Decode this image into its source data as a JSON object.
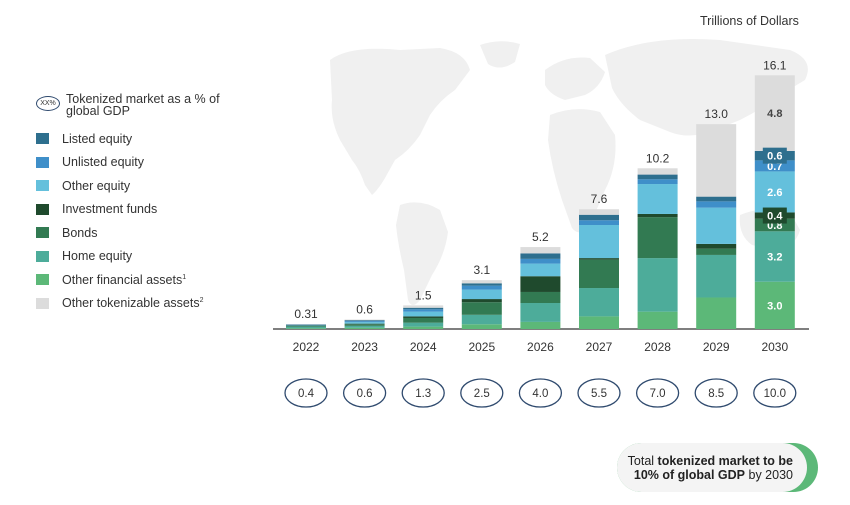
{
  "unit_label": "Trillions of Dollars",
  "legend": {
    "gdp_badge": "XX%",
    "gdp_label": "Tokenized market as a % of global GDP",
    "items": [
      {
        "label": "Listed equity",
        "sup": "",
        "color": "#2e6f8e"
      },
      {
        "label": "Unlisted equity",
        "sup": "",
        "color": "#3f8fc9"
      },
      {
        "label": "Other equity",
        "sup": "",
        "color": "#64c0dc"
      },
      {
        "label": "Investment funds",
        "sup": "",
        "color": "#1f4a2d"
      },
      {
        "label": "Bonds",
        "sup": "",
        "color": "#327a52"
      },
      {
        "label": "Home equity",
        "sup": "",
        "color": "#4dac9a"
      },
      {
        "label": "Other financial assets",
        "sup": "1",
        "color": "#5cb878"
      },
      {
        "label": "Other tokenizable assets",
        "sup": "2",
        "color": "#dcdcdc"
      }
    ]
  },
  "callout": {
    "line1_prefix": "Total ",
    "line1_bold": "tokenized market to be",
    "line2_bold": "10% of global GDP",
    "line2_suffix": " by 2030"
  },
  "chart_data": {
    "type": "bar",
    "stacked": true,
    "categories": [
      "2022",
      "2023",
      "2024",
      "2025",
      "2026",
      "2027",
      "2028",
      "2029",
      "2030"
    ],
    "totals": [
      0.31,
      0.6,
      1.5,
      3.1,
      5.2,
      7.6,
      10.2,
      13.0,
      16.1
    ],
    "total_labels": [
      "0.31",
      "0.6",
      "1.5",
      "3.1",
      "5.2",
      "7.6",
      "10.2",
      "13.0",
      "16.1"
    ],
    "gdp_percent": [
      "0.4",
      "0.6",
      "1.3",
      "2.5",
      "4.0",
      "5.5",
      "7.0",
      "8.5",
      "10.0"
    ],
    "series": [
      {
        "name": "Other financial assets",
        "color": "#5cb878",
        "values": [
          0.05,
          0.08,
          0.15,
          0.3,
          0.45,
          0.8,
          1.1,
          2.0,
          3.0
        ],
        "labels": [
          "",
          "",
          "",
          "",
          "",
          "",
          "",
          "",
          "3.0"
        ]
      },
      {
        "name": "Home equity",
        "color": "#4dac9a",
        "values": [
          0.1,
          0.12,
          0.25,
          0.6,
          1.2,
          1.8,
          3.4,
          2.7,
          3.2
        ],
        "labels": [
          "",
          "",
          "",
          "",
          "",
          "",
          "",
          "",
          "3.2"
        ]
      },
      {
        "name": "Bonds",
        "color": "#327a52",
        "values": [
          0.05,
          0.1,
          0.3,
          0.8,
          0.7,
          1.8,
          2.6,
          0.4,
          0.8
        ],
        "labels": [
          "",
          "",
          "",
          "",
          "",
          "",
          "",
          "",
          "0.8"
        ]
      },
      {
        "name": "Investment funds",
        "color": "#1f4a2d",
        "values": [
          0.02,
          0.04,
          0.1,
          0.2,
          1.0,
          0.1,
          0.2,
          0.3,
          0.4
        ],
        "labels": [
          "",
          "",
          "",
          "",
          "",
          "",
          "",
          "",
          "0.4"
        ]
      },
      {
        "name": "Other equity",
        "color": "#64c0dc",
        "values": [
          0.03,
          0.1,
          0.3,
          0.6,
          0.8,
          2.1,
          1.9,
          2.3,
          2.6
        ],
        "labels": [
          "",
          "",
          "",
          "",
          "",
          "",
          "",
          "",
          "2.6"
        ]
      },
      {
        "name": "Unlisted equity",
        "color": "#3f8fc9",
        "values": [
          0.03,
          0.06,
          0.15,
          0.25,
          0.3,
          0.3,
          0.3,
          0.4,
          0.7
        ],
        "labels": [
          "",
          "",
          "",
          "",
          "",
          "",
          "",
          "",
          "0.7"
        ]
      },
      {
        "name": "Listed equity",
        "color": "#2e6f8e",
        "values": [
          0.02,
          0.06,
          0.1,
          0.15,
          0.35,
          0.35,
          0.3,
          0.3,
          0.6
        ],
        "labels": [
          "",
          "",
          "",
          "",
          "",
          "",
          "",
          "",
          "0.6"
        ]
      },
      {
        "name": "Other tokenizable assets",
        "color": "#dcdcdc",
        "values": [
          0.01,
          0.04,
          0.15,
          0.2,
          0.4,
          0.35,
          0.4,
          4.6,
          4.8
        ],
        "labels": [
          "",
          "",
          "",
          "",
          "",
          "",
          "",
          "",
          "4.8"
        ]
      }
    ],
    "ylim": [
      0,
      16.5
    ]
  }
}
